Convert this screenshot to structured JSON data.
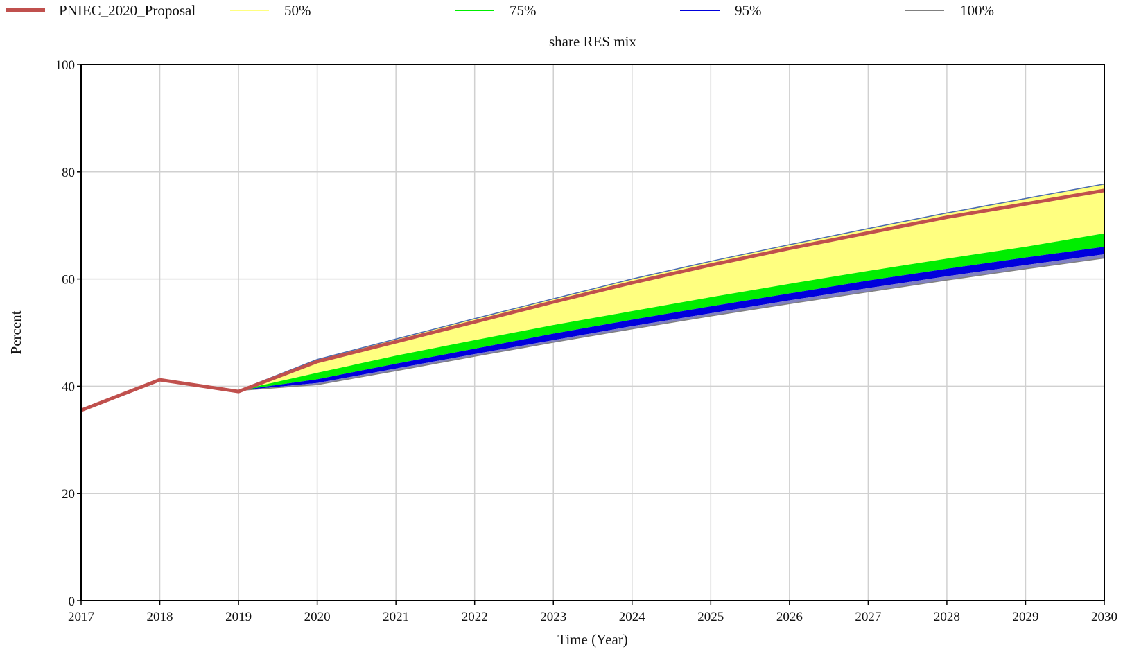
{
  "chart_data": {
    "type": "line",
    "title": "share RES mix",
    "xlabel": "Time (Year)",
    "ylabel": "Percent",
    "xlim": [
      2017,
      2030
    ],
    "ylim": [
      0,
      100
    ],
    "x_ticks": [
      "2017",
      "2018",
      "2019",
      "2020",
      "2021",
      "2022",
      "2023",
      "2024",
      "2025",
      "2026",
      "2027",
      "2028",
      "2029",
      "2030"
    ],
    "y_ticks": [
      "0",
      "20",
      "40",
      "60",
      "80",
      "100"
    ],
    "grid": true,
    "legend_position": "top",
    "legend": [
      {
        "label": "PNIEC_2020_Proposal",
        "color": "#c0504d"
      },
      {
        "label": "50%",
        "color": "#ffff80"
      },
      {
        "label": "75%",
        "color": "#00ee00"
      },
      {
        "label": "95%",
        "color": "#0000dd"
      },
      {
        "label": "100%",
        "color": "#808080"
      }
    ],
    "x": [
      2017,
      2018,
      2019,
      2020,
      2021,
      2022,
      2023,
      2024,
      2025,
      2026,
      2027,
      2028,
      2029,
      2030
    ],
    "series": [
      {
        "name": "PNIEC_2020_Proposal",
        "color": "#c0504d",
        "values": [
          35.5,
          41.2,
          39.0,
          44.6,
          48.3,
          52.0,
          55.7,
          59.3,
          62.6,
          65.7,
          68.6,
          71.5,
          74.0,
          76.5
        ]
      },
      {
        "name": "100%",
        "color": "#808080",
        "role": "band-top",
        "values": [
          35.5,
          41.2,
          39.2,
          45.0,
          48.8,
          52.6,
          56.3,
          60.0,
          63.3,
          66.4,
          69.4,
          72.3,
          75.0,
          77.7
        ]
      },
      {
        "name": "50%",
        "color": "#ffff80",
        "role": "band-edge",
        "values": [
          35.5,
          41.2,
          39.2,
          42.5,
          45.7,
          48.6,
          51.4,
          54.0,
          56.6,
          59.1,
          61.5,
          63.8,
          66.0,
          68.5
        ]
      },
      {
        "name": "75%",
        "color": "#00ee00",
        "role": "band-edge",
        "values": [
          35.5,
          41.2,
          39.2,
          41.3,
          44.2,
          47.0,
          49.8,
          52.4,
          54.9,
          57.3,
          59.7,
          61.9,
          64.0,
          66.0
        ]
      },
      {
        "name": "95%",
        "color": "#0000dd",
        "role": "band-edge",
        "values": [
          35.5,
          41.2,
          39.2,
          40.6,
          43.3,
          46.0,
          48.6,
          51.2,
          53.6,
          56.0,
          58.3,
          60.5,
          62.6,
          64.6
        ]
      },
      {
        "name": "100%",
        "color": "#808080",
        "role": "band-bottom",
        "values": [
          35.5,
          41.2,
          39.2,
          40.3,
          42.9,
          45.6,
          48.2,
          50.7,
          53.1,
          55.4,
          57.6,
          59.8,
          61.9,
          63.9
        ]
      }
    ]
  }
}
